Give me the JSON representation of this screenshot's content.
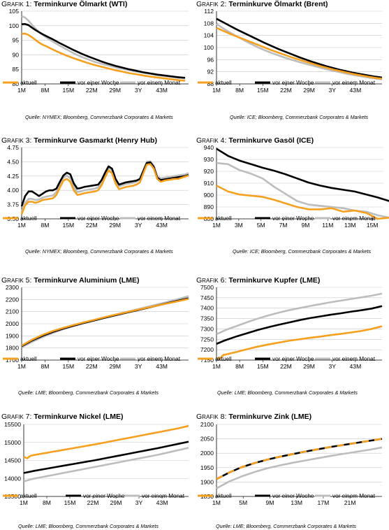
{
  "colors": {
    "aktuell": "#F5A01E",
    "woche": "#000000",
    "monat": "#BDBDBD",
    "grid": "#C8C8C8",
    "axis": "#000000"
  },
  "graf_prefix": {
    "g": "G",
    "rafik": "RAFIK"
  },
  "legend": {
    "aktuell": "aktuell",
    "woche": "vor einer Woche",
    "monat": "vor einem Monat"
  },
  "chart_data": [
    {
      "type": "line",
      "number": "1:",
      "title": "Terminkurve Ölmarkt (WTI)",
      "source": "Quelle: NYMEX; Bloomberg, Commerzbank Corporates & Markets",
      "x_ticks": [
        "1M",
        "8M",
        "15M",
        "22M",
        "29M",
        "3Y",
        "43M"
      ],
      "x": [
        1,
        2,
        3,
        4,
        5,
        6,
        7,
        8,
        9,
        10,
        12,
        14,
        16,
        18,
        20,
        22,
        24,
        26,
        28,
        30,
        32,
        34,
        36,
        38,
        40,
        42,
        44,
        46,
        48
      ],
      "xlim": [
        1,
        49
      ],
      "ylim": [
        80,
        105
      ],
      "y_ticks": [
        "80",
        "85",
        "90",
        "95",
        "100",
        "105"
      ],
      "grid": true,
      "series": [
        {
          "key": "aktuell",
          "values": [
            97.2,
            97.3,
            96.8,
            96.0,
            95.1,
            94.2,
            93.5,
            93.0,
            92.4,
            91.8,
            90.7,
            89.7,
            88.8,
            88.0,
            87.2,
            86.5,
            85.9,
            85.3,
            84.7,
            84.2,
            83.7,
            83.3,
            82.9,
            82.5,
            82.2,
            81.9,
            81.6,
            81.3,
            81.1
          ]
        },
        {
          "key": "woche",
          "values": [
            100.5,
            100.6,
            100.2,
            99.3,
            98.5,
            97.8,
            97.1,
            96.5,
            95.9,
            95.3,
            94.0,
            92.8,
            91.6,
            90.5,
            89.5,
            88.6,
            87.7,
            86.9,
            86.2,
            85.6,
            85.0,
            84.5,
            84.0,
            83.6,
            83.2,
            82.9,
            82.6,
            82.3,
            82.1
          ]
        },
        {
          "key": "monat",
          "values": [
            103.3,
            102.8,
            101.7,
            100.3,
            99.0,
            97.8,
            96.9,
            96.0,
            95.3,
            94.5,
            93.1,
            91.8,
            90.5,
            89.4,
            88.5,
            87.6,
            86.9,
            86.3,
            85.7,
            85.2,
            84.7,
            84.2,
            83.8,
            83.4,
            83.0,
            82.7,
            82.4,
            82.1,
            81.9
          ]
        }
      ]
    },
    {
      "type": "line",
      "number": "2:",
      "title": "Terminkurve Ölmarkt (Brent)",
      "source": "Quelle: ICE; Bloomberg, Commerzbank Corporates & Markets",
      "x_ticks": [
        "1M",
        "8M",
        "15M",
        "22M",
        "29M",
        "3Y",
        "43M"
      ],
      "x": [
        1,
        3,
        5,
        7,
        9,
        11,
        13,
        15,
        17,
        19,
        21,
        23,
        25,
        27,
        29,
        31,
        33,
        35,
        37,
        39,
        41,
        43,
        45,
        47,
        49
      ],
      "xlim": [
        1,
        49
      ],
      "ylim": [
        88,
        112
      ],
      "y_ticks": [
        "88",
        "92",
        "96",
        "100",
        "104",
        "108",
        "112"
      ],
      "grid": true,
      "series": [
        {
          "key": "aktuell",
          "values": [
            106.5,
            105.5,
            104.5,
            103.6,
            102.7,
            101.8,
            100.9,
            100.0,
            99.1,
            98.3,
            97.5,
            96.7,
            96.0,
            95.3,
            94.6,
            93.9,
            93.3,
            92.7,
            92.2,
            91.7,
            91.2,
            90.8,
            90.4,
            90.0,
            89.7
          ]
        },
        {
          "key": "woche",
          "values": [
            109.5,
            108.3,
            107.1,
            105.9,
            104.8,
            103.7,
            102.6,
            101.5,
            100.5,
            99.5,
            98.6,
            97.7,
            96.8,
            96.0,
            95.2,
            94.5,
            93.8,
            93.2,
            92.6,
            92.1,
            91.6,
            91.2,
            90.8,
            90.4,
            90.1
          ]
        },
        {
          "key": "monat",
          "values": [
            107.8,
            106.3,
            104.9,
            103.6,
            102.4,
            101.2,
            100.1,
            99.1,
            98.2,
            97.4,
            96.6,
            95.9,
            95.2,
            94.6,
            94.0,
            93.4,
            92.8,
            92.3,
            91.8,
            91.3,
            90.9,
            90.5,
            90.1,
            89.8,
            89.5
          ]
        }
      ]
    },
    {
      "type": "line",
      "number": "3:",
      "title": "Terminkurve Gasmarkt (Henry Hub)",
      "source": "Quelle: NYMEX; Bloomberg, Commerzbank Corporates & Markets",
      "x_ticks": [
        "1M",
        "8M",
        "15M",
        "22M",
        "29M",
        "3Y",
        "43M"
      ],
      "x": [
        1,
        2,
        3,
        4,
        5,
        6,
        7,
        8,
        9,
        10,
        11,
        12,
        13,
        14,
        15,
        16,
        17,
        18,
        19,
        20,
        21,
        22,
        23,
        24,
        25,
        26,
        27,
        28,
        29,
        30,
        31,
        32,
        33,
        34,
        35,
        36,
        37,
        38,
        39,
        40,
        41,
        42,
        43,
        44,
        45,
        46,
        47,
        48,
        49
      ],
      "xlim": [
        1,
        49
      ],
      "ylim": [
        3.5,
        4.75
      ],
      "y_ticks": [
        "3.50",
        "3.75",
        "4.00",
        "4.25",
        "4.50",
        "4.75"
      ],
      "grid": true,
      "series": [
        {
          "key": "aktuell",
          "values": [
            3.58,
            3.74,
            3.8,
            3.8,
            3.78,
            3.8,
            3.83,
            3.84,
            3.85,
            3.86,
            3.92,
            4.05,
            4.17,
            4.2,
            4.15,
            4.0,
            3.92,
            3.93,
            3.95,
            3.96,
            3.97,
            3.98,
            4.0,
            4.09,
            4.23,
            4.35,
            4.3,
            4.12,
            4.02,
            4.04,
            4.06,
            4.07,
            4.08,
            4.1,
            4.14,
            4.3,
            4.45,
            4.46,
            4.38,
            4.2,
            4.15,
            4.17,
            4.18,
            4.19,
            4.2,
            4.2,
            4.22,
            4.24,
            4.26
          ]
        },
        {
          "key": "woche",
          "values": [
            3.72,
            3.9,
            3.98,
            3.98,
            3.94,
            3.9,
            3.94,
            3.98,
            4.0,
            4.0,
            4.03,
            4.15,
            4.26,
            4.31,
            4.28,
            4.12,
            4.03,
            4.04,
            4.06,
            4.07,
            4.08,
            4.09,
            4.1,
            4.18,
            4.31,
            4.42,
            4.38,
            4.2,
            4.1,
            4.12,
            4.14,
            4.15,
            4.16,
            4.17,
            4.2,
            4.34,
            4.48,
            4.49,
            4.41,
            4.22,
            4.18,
            4.19,
            4.2,
            4.21,
            4.22,
            4.23,
            4.24,
            4.25,
            4.27
          ]
        },
        {
          "key": "monat",
          "values": [
            3.62,
            3.78,
            3.85,
            3.85,
            3.83,
            3.84,
            3.87,
            3.89,
            3.9,
            3.91,
            3.97,
            4.1,
            4.22,
            4.26,
            4.21,
            4.06,
            3.97,
            3.98,
            4.0,
            4.01,
            4.02,
            4.03,
            4.05,
            4.14,
            4.28,
            4.4,
            4.35,
            4.17,
            4.07,
            4.09,
            4.11,
            4.12,
            4.13,
            4.15,
            4.19,
            4.35,
            4.5,
            4.51,
            4.43,
            4.25,
            4.21,
            4.22,
            4.23,
            4.24,
            4.25,
            4.26,
            4.27,
            4.28,
            4.3
          ]
        }
      ]
    },
    {
      "type": "line",
      "number": "4:",
      "title": "Terminkurve Gasöl (ICE)",
      "source": "Quelle: ICE; Bloomberg, Commerzbank Corporates & Markets",
      "x_ticks": [
        "1M",
        "3M",
        "5M",
        "7M",
        "9M",
        "11M",
        "13M",
        "15M"
      ],
      "x": [
        1,
        2,
        3,
        4,
        5,
        6,
        7,
        8,
        9,
        10,
        11,
        12,
        13,
        14,
        15,
        16
      ],
      "xlim": [
        1,
        15.5
      ],
      "ylim": [
        880,
        940
      ],
      "y_ticks": [
        "880",
        "890",
        "900",
        "910",
        "920",
        "930",
        "940"
      ],
      "grid": true,
      "series": [
        {
          "key": "aktuell",
          "values": [
            908,
            903,
            900.5,
            899.5,
            898.5,
            896,
            893,
            890,
            888,
            888,
            889,
            886,
            887,
            885,
            880,
            881
          ]
        },
        {
          "key": "woche",
          "values": [
            939,
            933,
            929,
            926,
            923,
            920.5,
            917.5,
            914,
            910.5,
            908,
            906,
            904.5,
            903,
            900.5,
            898,
            895
          ]
        },
        {
          "key": "monat",
          "values": [
            927,
            926,
            921,
            918,
            914,
            907,
            901,
            895,
            892,
            891,
            890,
            889,
            887,
            886,
            883,
            881
          ]
        }
      ]
    },
    {
      "type": "line",
      "number": "5:",
      "title": "Terminkurve Aluminium (LME)",
      "source": "Quelle: LME; Bloomberg, Commerzbank Corporates & Markets",
      "x_ticks": [
        "1M",
        "8M",
        "15M",
        "22M",
        "29M",
        "3Y",
        "43M"
      ],
      "x": [
        1,
        4,
        7,
        10,
        13,
        16,
        19,
        22,
        25,
        28,
        31,
        34,
        37,
        40,
        43,
        46,
        49
      ],
      "xlim": [
        1,
        49
      ],
      "ylim": [
        1700,
        2300
      ],
      "y_ticks": [
        "1700",
        "1800",
        "1900",
        "2000",
        "2100",
        "2200",
        "2300"
      ],
      "grid": true,
      "series": [
        {
          "key": "aktuell",
          "values": [
            1820,
            1868,
            1908,
            1940,
            1966,
            1990,
            2012,
            2033,
            2055,
            2075,
            2094,
            2113,
            2132,
            2150,
            2168,
            2186,
            2205
          ]
        },
        {
          "key": "woche",
          "values": [
            1815,
            1862,
            1900,
            1933,
            1960,
            1984,
            2007,
            2028,
            2050,
            2070,
            2090,
            2110,
            2130,
            2150,
            2170,
            2190,
            2210
          ]
        },
        {
          "key": "monat",
          "values": [
            1805,
            1850,
            1890,
            1925,
            1955,
            1982,
            2007,
            2030,
            2053,
            2075,
            2096,
            2117,
            2138,
            2159,
            2180,
            2203,
            2228
          ]
        }
      ]
    },
    {
      "type": "line",
      "number": "6:",
      "title": "Terminkurve Kupfer (LME)",
      "source": "Quelle: LME; Bloomberg, Commerzbank Corporates & Markets",
      "x_ticks": [
        "1M",
        "8M",
        "15M",
        "22M",
        "29M",
        "3Y",
        "43M"
      ],
      "x": [
        1,
        2,
        3,
        4,
        7,
        10,
        13,
        16,
        19,
        22,
        25,
        28,
        31,
        34,
        37,
        40,
        43,
        46,
        49
      ],
      "xlim": [
        1,
        49
      ],
      "ylim": [
        7150,
        7500
      ],
      "y_ticks": [
        "7150",
        "7200",
        "7250",
        "7300",
        "7350",
        "7400",
        "7450",
        "7500"
      ],
      "grid": true,
      "series": [
        {
          "key": "aktuell",
          "values": [
            7160,
            7158,
            7175,
            7178,
            7190,
            7203,
            7215,
            7225,
            7234,
            7243,
            7250,
            7257,
            7263,
            7270,
            7276,
            7283,
            7290,
            7300,
            7313
          ]
        },
        {
          "key": "woche",
          "values": [
            7228,
            7235,
            7242,
            7248,
            7265,
            7280,
            7295,
            7308,
            7320,
            7331,
            7342,
            7352,
            7360,
            7368,
            7375,
            7383,
            7390,
            7398,
            7410
          ]
        },
        {
          "key": "monat",
          "values": [
            7275,
            7282,
            7290,
            7297,
            7315,
            7333,
            7350,
            7365,
            7378,
            7390,
            7400,
            7410,
            7419,
            7428,
            7436,
            7444,
            7452,
            7460,
            7470
          ]
        }
      ]
    },
    {
      "type": "line",
      "number": "7:",
      "title": "Terminkurve Nickel (LME)",
      "source": "Quelle: LME; Bloomberg, Commerzbank Corporates & Markets",
      "x_ticks": [
        "1M",
        "8M",
        "15M",
        "22M",
        "29M",
        "3Y",
        "43M"
      ],
      "x": [
        1,
        2,
        3,
        4,
        7,
        10,
        13,
        16,
        19,
        22,
        25,
        28,
        31,
        34,
        37,
        40,
        43,
        46,
        49
      ],
      "xlim": [
        1,
        49
      ],
      "ylim": [
        13500,
        15500
      ],
      "y_ticks": [
        "13500",
        "14000",
        "14500",
        "15000",
        "15500"
      ],
      "grid": true,
      "series": [
        {
          "key": "aktuell",
          "values": [
            14600,
            14560,
            14630,
            14650,
            14700,
            14750,
            14800,
            14850,
            14900,
            14950,
            15005,
            15060,
            15115,
            15170,
            15225,
            15280,
            15335,
            15390,
            15460
          ]
        },
        {
          "key": "woche",
          "values": [
            14150,
            14170,
            14190,
            14210,
            14260,
            14310,
            14360,
            14410,
            14460,
            14510,
            14565,
            14620,
            14675,
            14730,
            14785,
            14840,
            14900,
            14960,
            15020
          ]
        },
        {
          "key": "monat",
          "values": [
            13920,
            13945,
            13970,
            13995,
            14050,
            14105,
            14160,
            14215,
            14270,
            14325,
            14380,
            14435,
            14490,
            14545,
            14600,
            14655,
            14720,
            14785,
            14850
          ]
        }
      ]
    },
    {
      "type": "line",
      "number": "8:",
      "title": "Terminkurve Zink (LME)",
      "source": "Quelle: LME; Bloomberg, Commerzbank Corporates & Markets",
      "x_ticks": [
        "1M",
        "5M",
        "9M",
        "13M",
        "17M",
        "21M"
      ],
      "x": [
        1,
        3,
        5,
        7,
        9,
        11,
        13,
        15,
        17,
        19,
        21,
        23,
        25,
        27
      ],
      "xlim": [
        1,
        27
      ],
      "ylim": [
        1850,
        2100
      ],
      "y_ticks": [
        "1850",
        "1900",
        "1950",
        "2000",
        "2050",
        "2100"
      ],
      "grid": true,
      "series": [
        {
          "key": "woche",
          "values": [
            1910,
            1933,
            1952,
            1966,
            1978,
            1988,
            1997,
            2006,
            2014,
            2022,
            2029,
            2036,
            2043,
            2050
          ],
          "dashed": true
        },
        {
          "key": "aktuell",
          "values": [
            1910,
            1933,
            1952,
            1966,
            1978,
            1988,
            1997,
            2006,
            2014,
            2022,
            2029,
            2036,
            2043,
            2050
          ],
          "dashed_overlay": true
        },
        {
          "key": "monat",
          "values": [
            1878,
            1902,
            1920,
            1935,
            1948,
            1958,
            1967,
            1975,
            1983,
            1991,
            1998,
            2005,
            2012,
            2020
          ]
        }
      ]
    }
  ]
}
